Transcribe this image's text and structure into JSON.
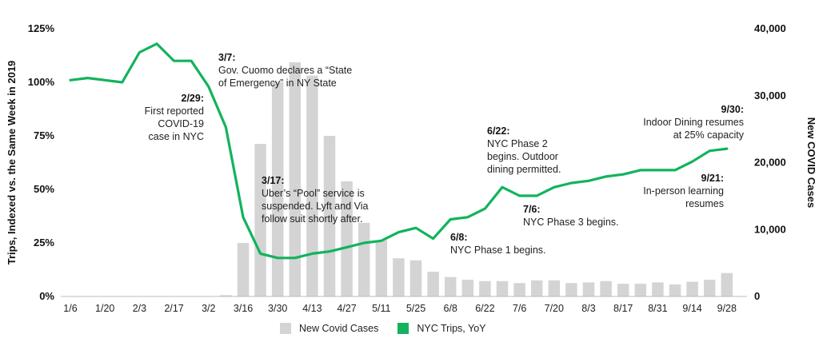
{
  "chart_data": {
    "type": "bar+line",
    "categories": [
      "1/6",
      "1/13",
      "1/20",
      "1/27",
      "2/3",
      "2/10",
      "2/17",
      "2/24",
      "3/2",
      "3/9",
      "3/16",
      "3/23",
      "3/30",
      "4/6",
      "4/13",
      "4/20",
      "4/27",
      "5/4",
      "5/11",
      "5/18",
      "5/25",
      "6/1",
      "6/8",
      "6/15",
      "6/22",
      "6/29",
      "7/6",
      "7/13",
      "7/20",
      "7/27",
      "8/3",
      "8/10",
      "8/17",
      "8/24",
      "8/31",
      "9/7",
      "9/14",
      "9/21",
      "9/28"
    ],
    "x_tick_labels": [
      "1/6",
      "1/20",
      "2/3",
      "2/17",
      "3/2",
      "3/16",
      "3/30",
      "4/13",
      "4/27",
      "5/11",
      "5/25",
      "6/8",
      "6/22",
      "7/6",
      "7/20",
      "8/3",
      "8/17",
      "8/31",
      "9/14",
      "9/28"
    ],
    "series": [
      {
        "name": "New Covid Cases",
        "type": "bar",
        "axis": "right",
        "color": "#d4d4d4",
        "values": [
          0,
          0,
          0,
          0,
          0,
          0,
          0,
          0,
          0,
          200,
          8000,
          22800,
          32000,
          35000,
          33000,
          24000,
          17200,
          11000,
          8400,
          5700,
          5400,
          3700,
          2900,
          2500,
          2300,
          2300,
          2000,
          2400,
          2400,
          2000,
          2100,
          2300,
          1900,
          1900,
          2100,
          1800,
          2200,
          2500,
          3500
        ]
      },
      {
        "name": "NYC Trips, YoY",
        "type": "line",
        "axis": "left",
        "color": "#12b35c",
        "values": [
          101,
          102,
          101,
          100,
          114,
          118,
          110,
          110,
          98,
          79,
          37,
          20,
          18,
          18,
          20,
          21,
          23,
          25,
          26,
          30,
          32,
          27,
          36,
          37,
          41,
          51,
          47,
          47,
          51,
          53,
          54,
          56,
          57,
          59,
          59,
          59,
          63,
          68,
          69
        ]
      }
    ],
    "ylabel_left": "Trips, Indexed vs. the Same Week in 2019",
    "ylabel_right": "New COVID Cases",
    "yticks_left": [
      "0%",
      "25%",
      "50%",
      "75%",
      "100%",
      "125%"
    ],
    "yticks_right": [
      "0",
      "10,000",
      "20,000",
      "30,000",
      "40,000"
    ],
    "ylim_left": [
      0,
      125
    ],
    "ylim_right": [
      0,
      40000
    ],
    "legend": [
      "New Covid Cases",
      "NYC Trips, YoY"
    ],
    "annotations": [
      {
        "date": "2/29:",
        "text": [
          "First reported",
          "COVID-19",
          "case in NYC"
        ]
      },
      {
        "date": "3/7:",
        "text": [
          "Gov. Cuomo declares a “State",
          "of Emergency” in NY State"
        ]
      },
      {
        "date": "3/17:",
        "text": [
          "Uber’s “Pool” service is",
          "suspended. Lyft and Via",
          "follow suit shortly after."
        ]
      },
      {
        "date": "6/8:",
        "text": [
          "NYC Phase 1 begins."
        ]
      },
      {
        "date": "6/22:",
        "text": [
          "NYC Phase 2",
          "begins. Outdoor",
          "dining permitted."
        ]
      },
      {
        "date": "7/6:",
        "text": [
          "NYC Phase 3 begins."
        ]
      },
      {
        "date": "9/21:",
        "text": [
          "In-person learning",
          "resumes"
        ]
      },
      {
        "date": "9/30:",
        "text": [
          "Indoor Dining resumes",
          "at 25% capacity"
        ]
      }
    ]
  }
}
